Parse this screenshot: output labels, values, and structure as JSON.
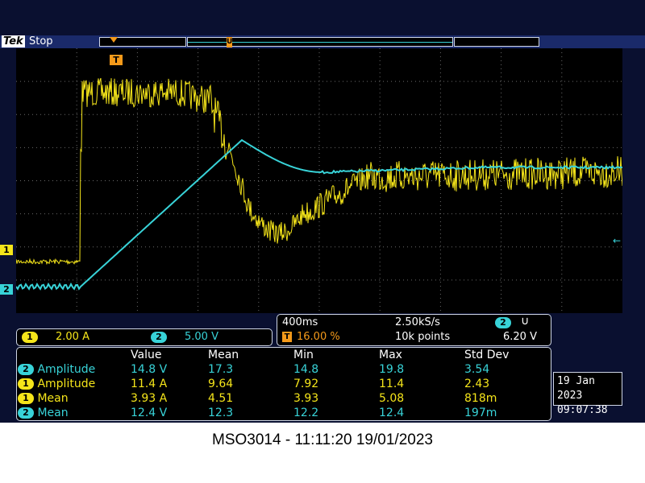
{
  "header": {
    "brand": "Tek",
    "run_state": "Stop",
    "trigger_marker": "T",
    "center_marker": "U"
  },
  "channel_markers": {
    "ch1": "1",
    "ch2": "2"
  },
  "scales": {
    "ch1": {
      "num": "1",
      "value": "2.00 A"
    },
    "ch2": {
      "num": "2",
      "value": "5.00 V"
    }
  },
  "timebase": {
    "time_per_div": "400ms",
    "sample_rate": "2.50kS/s",
    "trigger_position": "16.00 %",
    "trigger_badge": "T",
    "record_length": "10k points",
    "trigger_source": "2",
    "trigger_slope_icon": "rising-edge-icon",
    "trigger_level": "6.20 V"
  },
  "measurements": {
    "headers": [
      "Value",
      "Mean",
      "Min",
      "Max",
      "Std Dev"
    ],
    "rows": [
      {
        "ch": "2",
        "name": "Amplitude",
        "value": "14.8 V",
        "mean": "17.3",
        "min": "14.8",
        "max": "19.8",
        "std": "3.54"
      },
      {
        "ch": "1",
        "name": "Amplitude",
        "value": "11.4 A",
        "mean": "9.64",
        "min": "7.92",
        "max": "11.4",
        "std": "2.43"
      },
      {
        "ch": "1",
        "name": "Mean",
        "value": "3.93 A",
        "mean": "4.51",
        "min": "3.93",
        "max": "5.08",
        "std": "818m"
      },
      {
        "ch": "2",
        "name": "Mean",
        "value": "12.4 V",
        "mean": "12.3",
        "min": "12.2",
        "max": "12.4",
        "std": "197m"
      }
    ]
  },
  "datetime": {
    "date": "19 Jan  2023",
    "time": "09:07:38"
  },
  "caption": "MSO3014 - 11:11:20   19/01/2023",
  "colors": {
    "ch1": "#f5e51a",
    "ch2": "#38d3d8",
    "grid": "#6a6a6a",
    "screen_bg": "#0a1030"
  }
}
